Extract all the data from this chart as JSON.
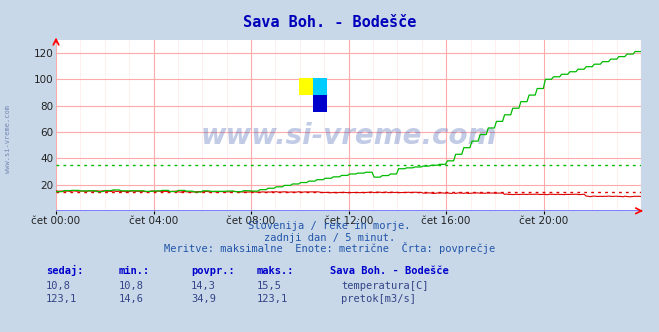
{
  "title": "Sava Boh. - Bodešče",
  "bg_color": "#c8d8e8",
  "plot_bg_color": "#ffffff",
  "grid_color_major": "#ffaaaa",
  "grid_color_minor": "#ffe8e8",
  "x_labels": [
    "čet 00:00",
    "čet 04:00",
    "čet 08:00",
    "čet 12:00",
    "čet 16:00",
    "čet 20:00"
  ],
  "y_min": 0,
  "y_max": 130,
  "y_ticks": [
    20,
    40,
    60,
    80,
    100,
    120
  ],
  "temp_color": "#dd0000",
  "flow_color": "#00bb00",
  "blue_line_color": "#6666ff",
  "temp_avg": 14.3,
  "flow_avg": 34.9,
  "n_points": 288,
  "subtitle1": "Slovenija / reke in morje.",
  "subtitle2": "zadnji dan / 5 minut.",
  "subtitle3": "Meritve: maksimalne  Enote: metrične  Črta: povprečje",
  "legend_title": "Sava Boh. - Bodešče",
  "legend_rows": [
    {
      "color": "#cc0000",
      "label": "temperatura[C]",
      "sedaj": "10,8",
      "min": "10,8",
      "povpr": "14,3",
      "maks": "15,5"
    },
    {
      "color": "#00aa00",
      "label": "pretok[m3/s]",
      "sedaj": "123,1",
      "min": "14,6",
      "povpr": "34,9",
      "maks": "123,1"
    }
  ],
  "table_headers": [
    "sedaj:",
    "min.:",
    "povpr.:",
    "maks.:"
  ],
  "watermark": "www.si-vreme.com",
  "left_label": "www.si-vreme.com"
}
